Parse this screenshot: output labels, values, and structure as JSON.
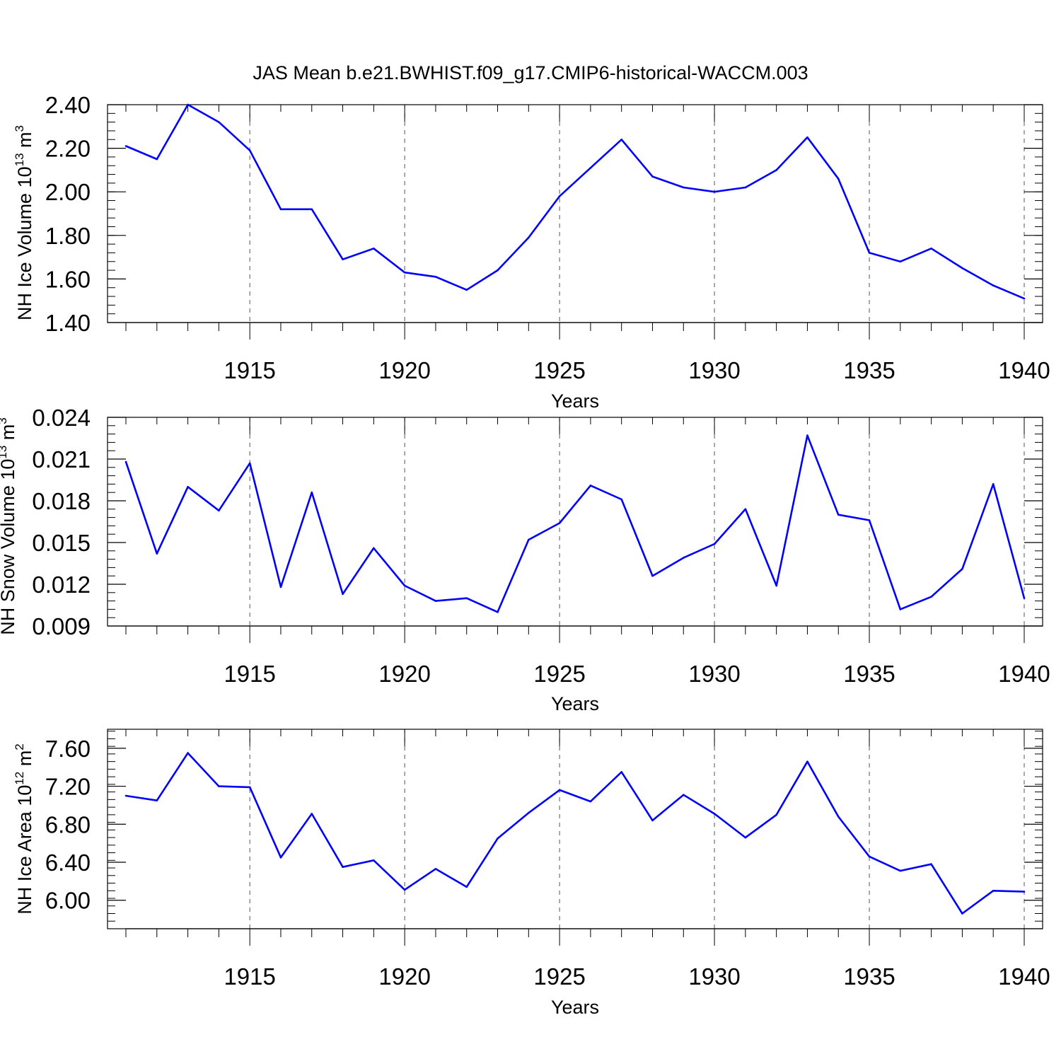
{
  "title": "JAS Mean b.e21.BWHIST.f09_g17.CMIP6-historical-WACCM.003",
  "colors": {
    "line": "#0000ff",
    "axis": "#000000",
    "grid": "#555555"
  },
  "chart_data": [
    {
      "type": "line",
      "ylabel_main": "NH Ice Volume 10",
      "ylabel_exp": "13",
      "ylabel_tail": " m",
      "ylabel_exp2": "3",
      "xlabel": "Years",
      "xlim": [
        1911,
        1940
      ],
      "ylim": [
        1.4,
        2.4
      ],
      "xticks": [
        "1915",
        "1920",
        "1925",
        "1930",
        "1935",
        "1940"
      ],
      "yticks": [
        "2.40",
        "2.20",
        "2.00",
        "1.80",
        "1.60",
        "1.40"
      ],
      "grid": "vertical dashed at major x ticks",
      "x": [
        1911,
        1912,
        1913,
        1914,
        1915,
        1916,
        1917,
        1918,
        1919,
        1920,
        1921,
        1922,
        1923,
        1924,
        1925,
        1926,
        1927,
        1928,
        1929,
        1930,
        1931,
        1932,
        1933,
        1934,
        1935,
        1936,
        1937,
        1938,
        1939,
        1940
      ],
      "values": [
        2.21,
        2.15,
        2.4,
        2.32,
        2.19,
        1.92,
        1.92,
        1.69,
        1.74,
        1.63,
        1.61,
        1.55,
        1.64,
        1.79,
        1.98,
        2.11,
        2.24,
        2.07,
        2.02,
        2.0,
        2.02,
        2.1,
        2.25,
        2.06,
        1.72,
        1.68,
        1.74,
        1.65,
        1.57,
        1.51
      ]
    },
    {
      "type": "line",
      "ylabel_main": "NH Snow Volume 10",
      "ylabel_exp": "13",
      "ylabel_tail": " m",
      "ylabel_exp2": "3",
      "xlabel": "Years",
      "xlim": [
        1911,
        1940
      ],
      "ylim": [
        0.009,
        0.024
      ],
      "xticks": [
        "1915",
        "1920",
        "1925",
        "1930",
        "1935",
        "1940"
      ],
      "yticks": [
        "0.024",
        "0.021",
        "0.018",
        "0.015",
        "0.012",
        "0.009"
      ],
      "grid": "vertical dashed at major x ticks",
      "x": [
        1911,
        1912,
        1913,
        1914,
        1915,
        1916,
        1917,
        1918,
        1919,
        1920,
        1921,
        1922,
        1923,
        1924,
        1925,
        1926,
        1927,
        1928,
        1929,
        1930,
        1931,
        1932,
        1933,
        1934,
        1935,
        1936,
        1937,
        1938,
        1939,
        1940
      ],
      "values": [
        0.0208,
        0.0142,
        0.019,
        0.0173,
        0.0207,
        0.0118,
        0.0186,
        0.0113,
        0.0146,
        0.0119,
        0.0108,
        0.011,
        0.01,
        0.0152,
        0.0164,
        0.0191,
        0.0181,
        0.0126,
        0.0139,
        0.0149,
        0.0174,
        0.0119,
        0.0227,
        0.017,
        0.0166,
        0.0102,
        0.0111,
        0.0131,
        0.0192,
        0.011
      ]
    },
    {
      "type": "line",
      "ylabel_main": "NH Ice Area 10",
      "ylabel_exp": "12",
      "ylabel_tail": " m",
      "ylabel_exp2": "2",
      "xlabel": "Years",
      "xlim": [
        1911,
        1940
      ],
      "ylim": [
        5.7,
        7.8
      ],
      "xticks": [
        "1915",
        "1920",
        "1925",
        "1930",
        "1935",
        "1940"
      ],
      "yticks": [
        "7.60",
        "7.20",
        "6.80",
        "6.40",
        "6.00"
      ],
      "grid": "vertical dashed at major x ticks",
      "x": [
        1911,
        1912,
        1913,
        1914,
        1915,
        1916,
        1917,
        1918,
        1919,
        1920,
        1921,
        1922,
        1923,
        1924,
        1925,
        1926,
        1927,
        1928,
        1929,
        1930,
        1931,
        1932,
        1933,
        1934,
        1935,
        1936,
        1937,
        1938,
        1939,
        1940
      ],
      "values": [
        7.1,
        7.05,
        7.55,
        7.2,
        7.19,
        6.45,
        6.91,
        6.35,
        6.42,
        6.11,
        6.33,
        6.14,
        6.65,
        6.92,
        7.16,
        7.04,
        7.35,
        6.84,
        7.11,
        6.91,
        6.66,
        6.9,
        7.46,
        6.88,
        6.46,
        6.31,
        6.38,
        5.86,
        6.1,
        6.09
      ]
    }
  ]
}
